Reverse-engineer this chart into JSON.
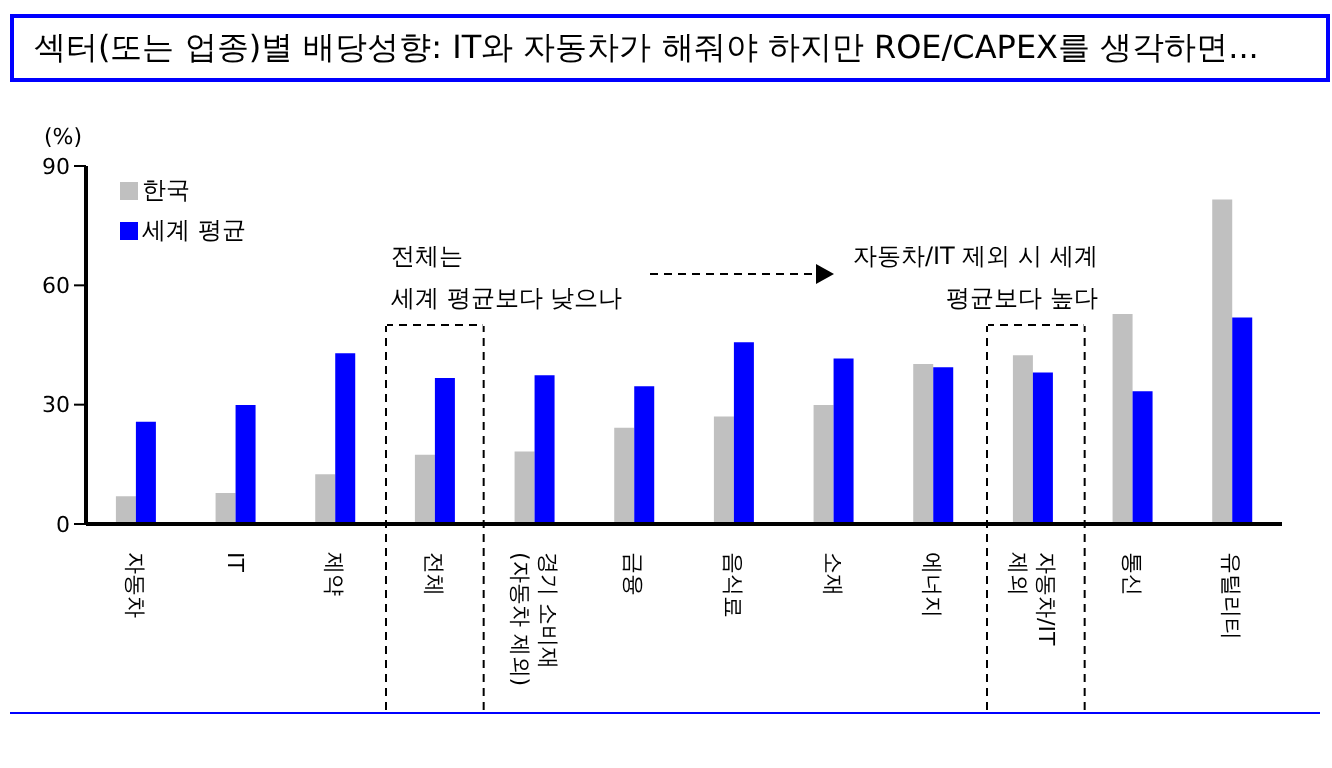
{
  "chart_data": {
    "type": "bar",
    "title": "섹터(또는 업종)별 배당성향: IT와 자동차가 해줘야 하지만 ROE/CAPEX를 생각하면...",
    "ylabel": "(%)",
    "categories": [
      "자동차",
      "IT",
      "제약",
      "전체",
      "경기 소비재\n(자동차 제외)",
      "금융",
      "음식료",
      "소재",
      "에너지",
      "자동차/IT\n제외",
      "통신",
      "유틸리티"
    ],
    "series": [
      {
        "name": "한국",
        "color": "#c0c0c0",
        "values": [
          7.0,
          7.8,
          12.5,
          17.4,
          18.2,
          24.2,
          27.0,
          29.9,
          40.2,
          42.4,
          52.8,
          81.6
        ]
      },
      {
        "name": "세계 평균",
        "color": "#0000ff",
        "values": [
          25.7,
          29.9,
          42.9,
          36.7,
          37.4,
          34.6,
          45.7,
          41.6,
          39.4,
          38.1,
          33.4,
          51.9
        ]
      }
    ],
    "ylim": [
      0,
      90
    ],
    "yticks": [
      0,
      30,
      60,
      90
    ],
    "grid": false,
    "legend": "top left",
    "annotations": [
      "전체는\n세계 평균보다 낮으나",
      "자동차/IT 제외 시 세계\n평균보다 높다"
    ]
  }
}
